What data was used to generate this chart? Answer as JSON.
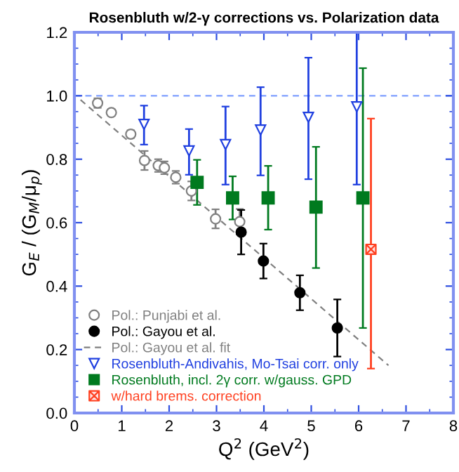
{
  "chart_data": {
    "type": "scatter",
    "title": "Rosenbluth w/2-γ corrections vs. Polarization data",
    "xlabel": "Q$^{2}$ (GeV$^{2}$)",
    "ylabel": "G$_{E}$ / (G$_{M}$/μ$_{p}$)",
    "xlim": [
      0,
      8
    ],
    "ylim": [
      0,
      1.2
    ],
    "xticks": [
      0,
      1,
      2,
      3,
      4,
      5,
      6,
      7,
      8
    ],
    "yticks": [
      {
        "value": 0,
        "label": "0.0"
      },
      {
        "value": 0.2,
        "label": "0.2"
      },
      {
        "value": 0.4,
        "label": "0.4"
      },
      {
        "value": 0.6,
        "label": "0.6"
      },
      {
        "value": 0.8,
        "label": "0.8"
      },
      {
        "value": 1.0,
        "label": "1.0"
      },
      {
        "value": 1.2,
        "label": "1.2"
      }
    ],
    "grid": false,
    "legend": "bottom left",
    "ref_lines": [
      {
        "axis": "y",
        "value": 1.0,
        "color": "#7f9fff",
        "line_style": "dashed"
      }
    ],
    "series": [
      {
        "name": "Pol.: Punjabi et al.",
        "color": "#808080",
        "marker": "circle",
        "x": [
          0.49,
          0.78,
          1.19,
          1.48,
          1.77,
          1.9,
          2.14,
          2.47,
          2.98,
          3.49
        ],
        "values": [
          0.977,
          0.947,
          0.879,
          0.796,
          0.78,
          0.773,
          0.743,
          0.7,
          0.612,
          0.603
        ],
        "errors": [
          0.015,
          0.01,
          0.012,
          0.03,
          0.02,
          0.02,
          0.02,
          0.03,
          0.03,
          0.04
        ]
      },
      {
        "name": "Pol.: Gayou et al.",
        "color": "#000000",
        "marker": "circle",
        "x": [
          3.52,
          3.99,
          4.76,
          5.55
        ],
        "values": [
          0.57,
          0.479,
          0.379,
          0.268
        ],
        "errors": [
          0.07,
          0.055,
          0.055,
          0.09
        ]
      },
      {
        "name": "Pol.: Gayou et al. fit",
        "type": "line",
        "color": "#808080",
        "marker": "none",
        "line_style": "dashed",
        "x": [
          0.13,
          6.63
        ],
        "values": [
          0.987,
          0.15
        ]
      },
      {
        "name": "Rosenbluth-Andivahis, Mo-Tsai corr. only",
        "color": "#2040e0",
        "marker": "triangle",
        "x": [
          1.47,
          2.42,
          3.19,
          3.93,
          4.94,
          5.96
        ],
        "values": [
          0.91,
          0.826,
          0.846,
          0.892,
          0.932,
          0.965
        ],
        "errors": [
          [
            0.846,
            0.969
          ],
          [
            0.751,
            0.895
          ],
          [
            0.72,
            0.966
          ],
          [
            0.749,
            1.027
          ],
          [
            0.737,
            1.12
          ],
          [
            0.72,
            1.2
          ]
        ]
      },
      {
        "name": "Rosenbluth, incl. 2γ corr. w/gauss. GPD",
        "color": "#007a1f",
        "marker": "square",
        "x": [
          2.59,
          3.34,
          4.09,
          5.1,
          6.09
        ],
        "values": [
          0.727,
          0.678,
          0.678,
          0.649,
          0.678
        ],
        "errors": [
          [
            0.656,
            0.798
          ],
          [
            0.61,
            0.746
          ],
          [
            0.578,
            0.779
          ],
          [
            0.457,
            0.839
          ],
          [
            0.268,
            1.087
          ]
        ]
      },
      {
        "name": "w/hard brems. correction",
        "color": "#ff4020",
        "marker": "cross",
        "x": [
          6.26
        ],
        "values": [
          0.516
        ],
        "errors": [
          [
            0.14,
            0.928
          ]
        ]
      }
    ]
  }
}
